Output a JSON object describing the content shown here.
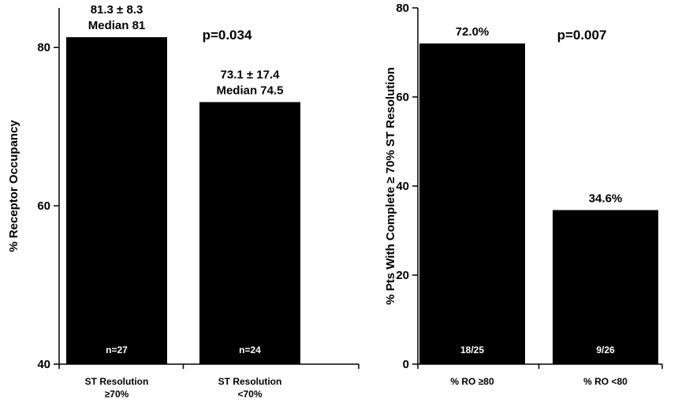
{
  "chart_data": [
    {
      "type": "bar",
      "ylabel": "% Receptor Occupancy",
      "ylim": [
        40,
        85
      ],
      "yticks": [
        40,
        60,
        80
      ],
      "p_value": "p=0.034",
      "categories": [
        [
          "ST Resolution",
          "≥70%"
        ],
        [
          "ST Resolution",
          "<70%"
        ]
      ],
      "values": [
        81.3,
        73.1
      ],
      "annotations": [
        [
          "81.3 ± 8.3",
          "Median 81"
        ],
        [
          "73.1 ± 17.4",
          "Median 74.5"
        ]
      ],
      "bar_labels": [
        "n=27",
        "n=24"
      ],
      "bar_color": "#000000",
      "grid": false
    },
    {
      "type": "bar",
      "ylabel": "% Pts With Complete ≥ 70% ST Resolution",
      "ylim": [
        0,
        80
      ],
      "yticks": [
        0,
        20,
        40,
        60,
        80
      ],
      "p_value": "p=0.007",
      "categories": [
        [
          "% RO ≥80"
        ],
        [
          "% RO <80"
        ]
      ],
      "values": [
        72.0,
        34.6
      ],
      "annotations": [
        [
          "72.0%"
        ],
        [
          "34.6%"
        ]
      ],
      "bar_labels": [
        "18/25",
        "9/26"
      ],
      "bar_color": "#000000",
      "grid": false
    }
  ]
}
